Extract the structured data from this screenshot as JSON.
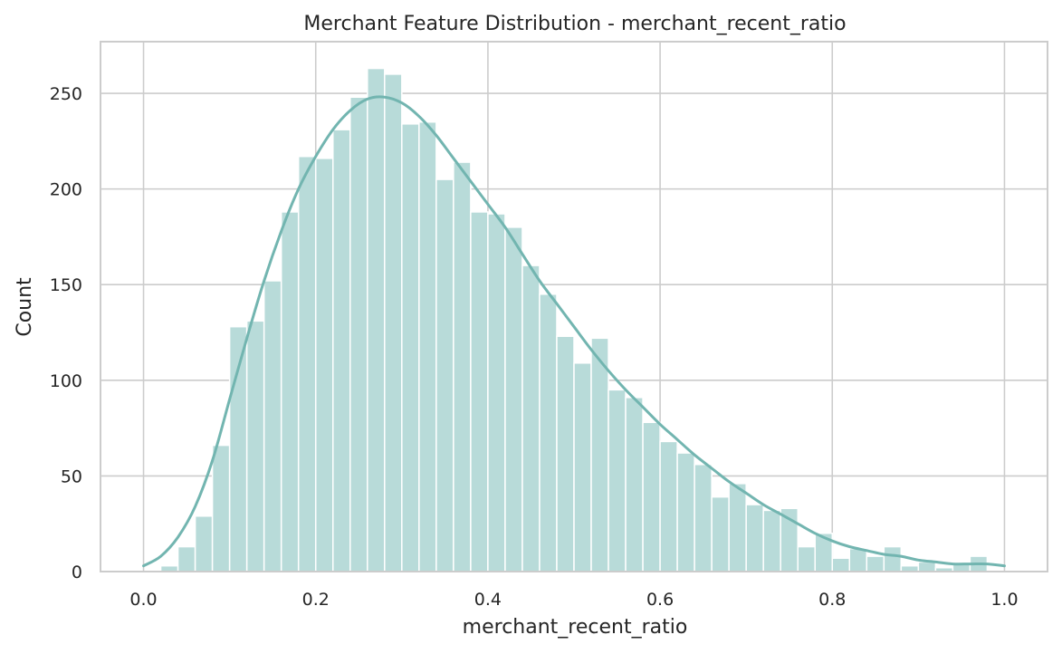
{
  "chart_data": {
    "type": "bar",
    "title": "Merchant Feature Distribution - merchant_recent_ratio",
    "xlabel": "merchant_recent_ratio",
    "ylabel": "Count",
    "xlim": [
      -0.05,
      1.05
    ],
    "ylim": [
      0,
      277
    ],
    "xticks": [
      0.0,
      0.2,
      0.4,
      0.6,
      0.8,
      1.0
    ],
    "xtick_labels": [
      "0.0",
      "0.2",
      "0.4",
      "0.6",
      "0.8",
      "1.0"
    ],
    "yticks": [
      0,
      50,
      100,
      150,
      200,
      250
    ],
    "ytick_labels": [
      "0",
      "50",
      "100",
      "150",
      "200",
      "250"
    ],
    "grid": true,
    "bar_color": "#b8dbd9",
    "kde_color": "#72b5b0",
    "bins": {
      "start": 0.0,
      "width": 0.02,
      "counts": [
        0,
        3,
        13,
        29,
        66,
        128,
        131,
        152,
        188,
        217,
        216,
        231,
        248,
        263,
        260,
        234,
        235,
        205,
        214,
        188,
        187,
        180,
        160,
        145,
        123,
        109,
        122,
        95,
        91,
        78,
        68,
        62,
        56,
        39,
        46,
        35,
        32,
        33,
        13,
        20,
        7,
        12,
        8,
        13,
        3,
        5,
        2,
        4,
        8
      ]
    },
    "kde": {
      "x": [
        0.0,
        0.02,
        0.04,
        0.06,
        0.08,
        0.1,
        0.12,
        0.14,
        0.16,
        0.18,
        0.2,
        0.22,
        0.24,
        0.26,
        0.28,
        0.3,
        0.32,
        0.34,
        0.36,
        0.38,
        0.4,
        0.42,
        0.44,
        0.46,
        0.48,
        0.5,
        0.52,
        0.54,
        0.56,
        0.58,
        0.6,
        0.62,
        0.64,
        0.66,
        0.68,
        0.7,
        0.72,
        0.74,
        0.76,
        0.78,
        0.8,
        0.82,
        0.84,
        0.86,
        0.88,
        0.9,
        0.92,
        0.94,
        0.96,
        0.98,
        1.0
      ],
      "y": [
        3,
        8,
        18,
        34,
        58,
        90,
        122,
        152,
        178,
        200,
        217,
        231,
        241,
        247,
        248,
        245,
        238,
        228,
        216,
        204,
        192,
        180,
        166,
        152,
        140,
        128,
        116,
        105,
        95,
        86,
        77,
        69,
        61,
        54,
        47,
        41,
        35,
        30,
        25,
        20,
        16,
        13,
        11,
        9,
        8,
        6,
        5,
        4,
        4,
        4,
        3
      ]
    }
  }
}
